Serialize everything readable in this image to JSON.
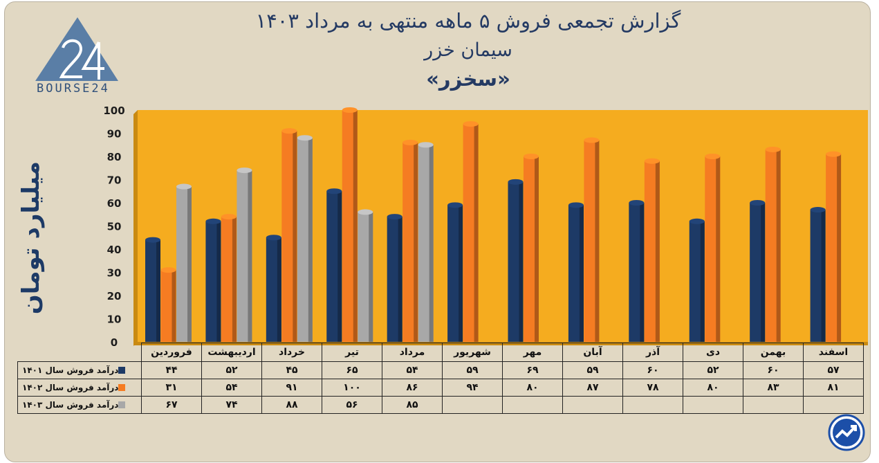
{
  "title": {
    "line1": "گزارش تجمعی فروش ۵ ماهه منتهی به مرداد ۱۴۰۳",
    "line2": "سیمان خزر",
    "line3": "«سخزر»"
  },
  "logo": {
    "text": "BOURSE24",
    "mark": "24"
  },
  "colors": {
    "card_bg": "#e1d8c3",
    "plot_bg": "#f5ac1f",
    "series_1401": "#1d3a66",
    "series_1402": "#f57c22",
    "series_1403": "#a8a8a8",
    "axis_text": "#1d3a66"
  },
  "chart_data": {
    "type": "bar",
    "ylabel": "میلیارد تومان",
    "ylim": [
      0,
      100
    ],
    "yticks": [
      0,
      10,
      20,
      30,
      40,
      50,
      60,
      70,
      80,
      90,
      100
    ],
    "ytick_labels": [
      "0",
      "10",
      "20",
      "30",
      "40",
      "50",
      "60",
      "70",
      "80",
      "90",
      "100"
    ],
    "categories": [
      "فروردین",
      "اردیبهشت",
      "خرداد",
      "تیر",
      "مرداد",
      "شهریور",
      "مهر",
      "آبان",
      "آذر",
      "دی",
      "بهمن",
      "اسفند"
    ],
    "series": [
      {
        "name": "درآمد فروش سال ۱۴۰۱",
        "color": "#1d3a66",
        "values": [
          44,
          52,
          45,
          65,
          54,
          59,
          69,
          59,
          60,
          52,
          60,
          57
        ],
        "labels": [
          "۴۴",
          "۵۲",
          "۴۵",
          "۶۵",
          "۵۴",
          "۵۹",
          "۶۹",
          "۵۹",
          "۶۰",
          "۵۲",
          "۶۰",
          "۵۷"
        ]
      },
      {
        "name": "درآمد فروش سال ۱۴۰۲",
        "color": "#f57c22",
        "values": [
          31,
          54,
          91,
          100,
          86,
          94,
          80,
          87,
          78,
          80,
          83,
          81
        ],
        "labels": [
          "۳۱",
          "۵۴",
          "۹۱",
          "۱۰۰",
          "۸۶",
          "۹۴",
          "۸۰",
          "۸۷",
          "۷۸",
          "۸۰",
          "۸۳",
          "۸۱"
        ]
      },
      {
        "name": "درآمد فروش سال ۱۴۰۳",
        "color": "#a8a8a8",
        "values": [
          67,
          74,
          88,
          56,
          85,
          null,
          null,
          null,
          null,
          null,
          null,
          null
        ],
        "labels": [
          "۶۷",
          "۷۴",
          "۸۸",
          "۵۶",
          "۸۵",
          "",
          "",
          "",
          "",
          "",
          "",
          ""
        ]
      }
    ],
    "grid": false,
    "legend": "table-left"
  },
  "icons": {
    "corner": "trend-up-icon",
    "logo": "triangle-24-logo-icon"
  }
}
